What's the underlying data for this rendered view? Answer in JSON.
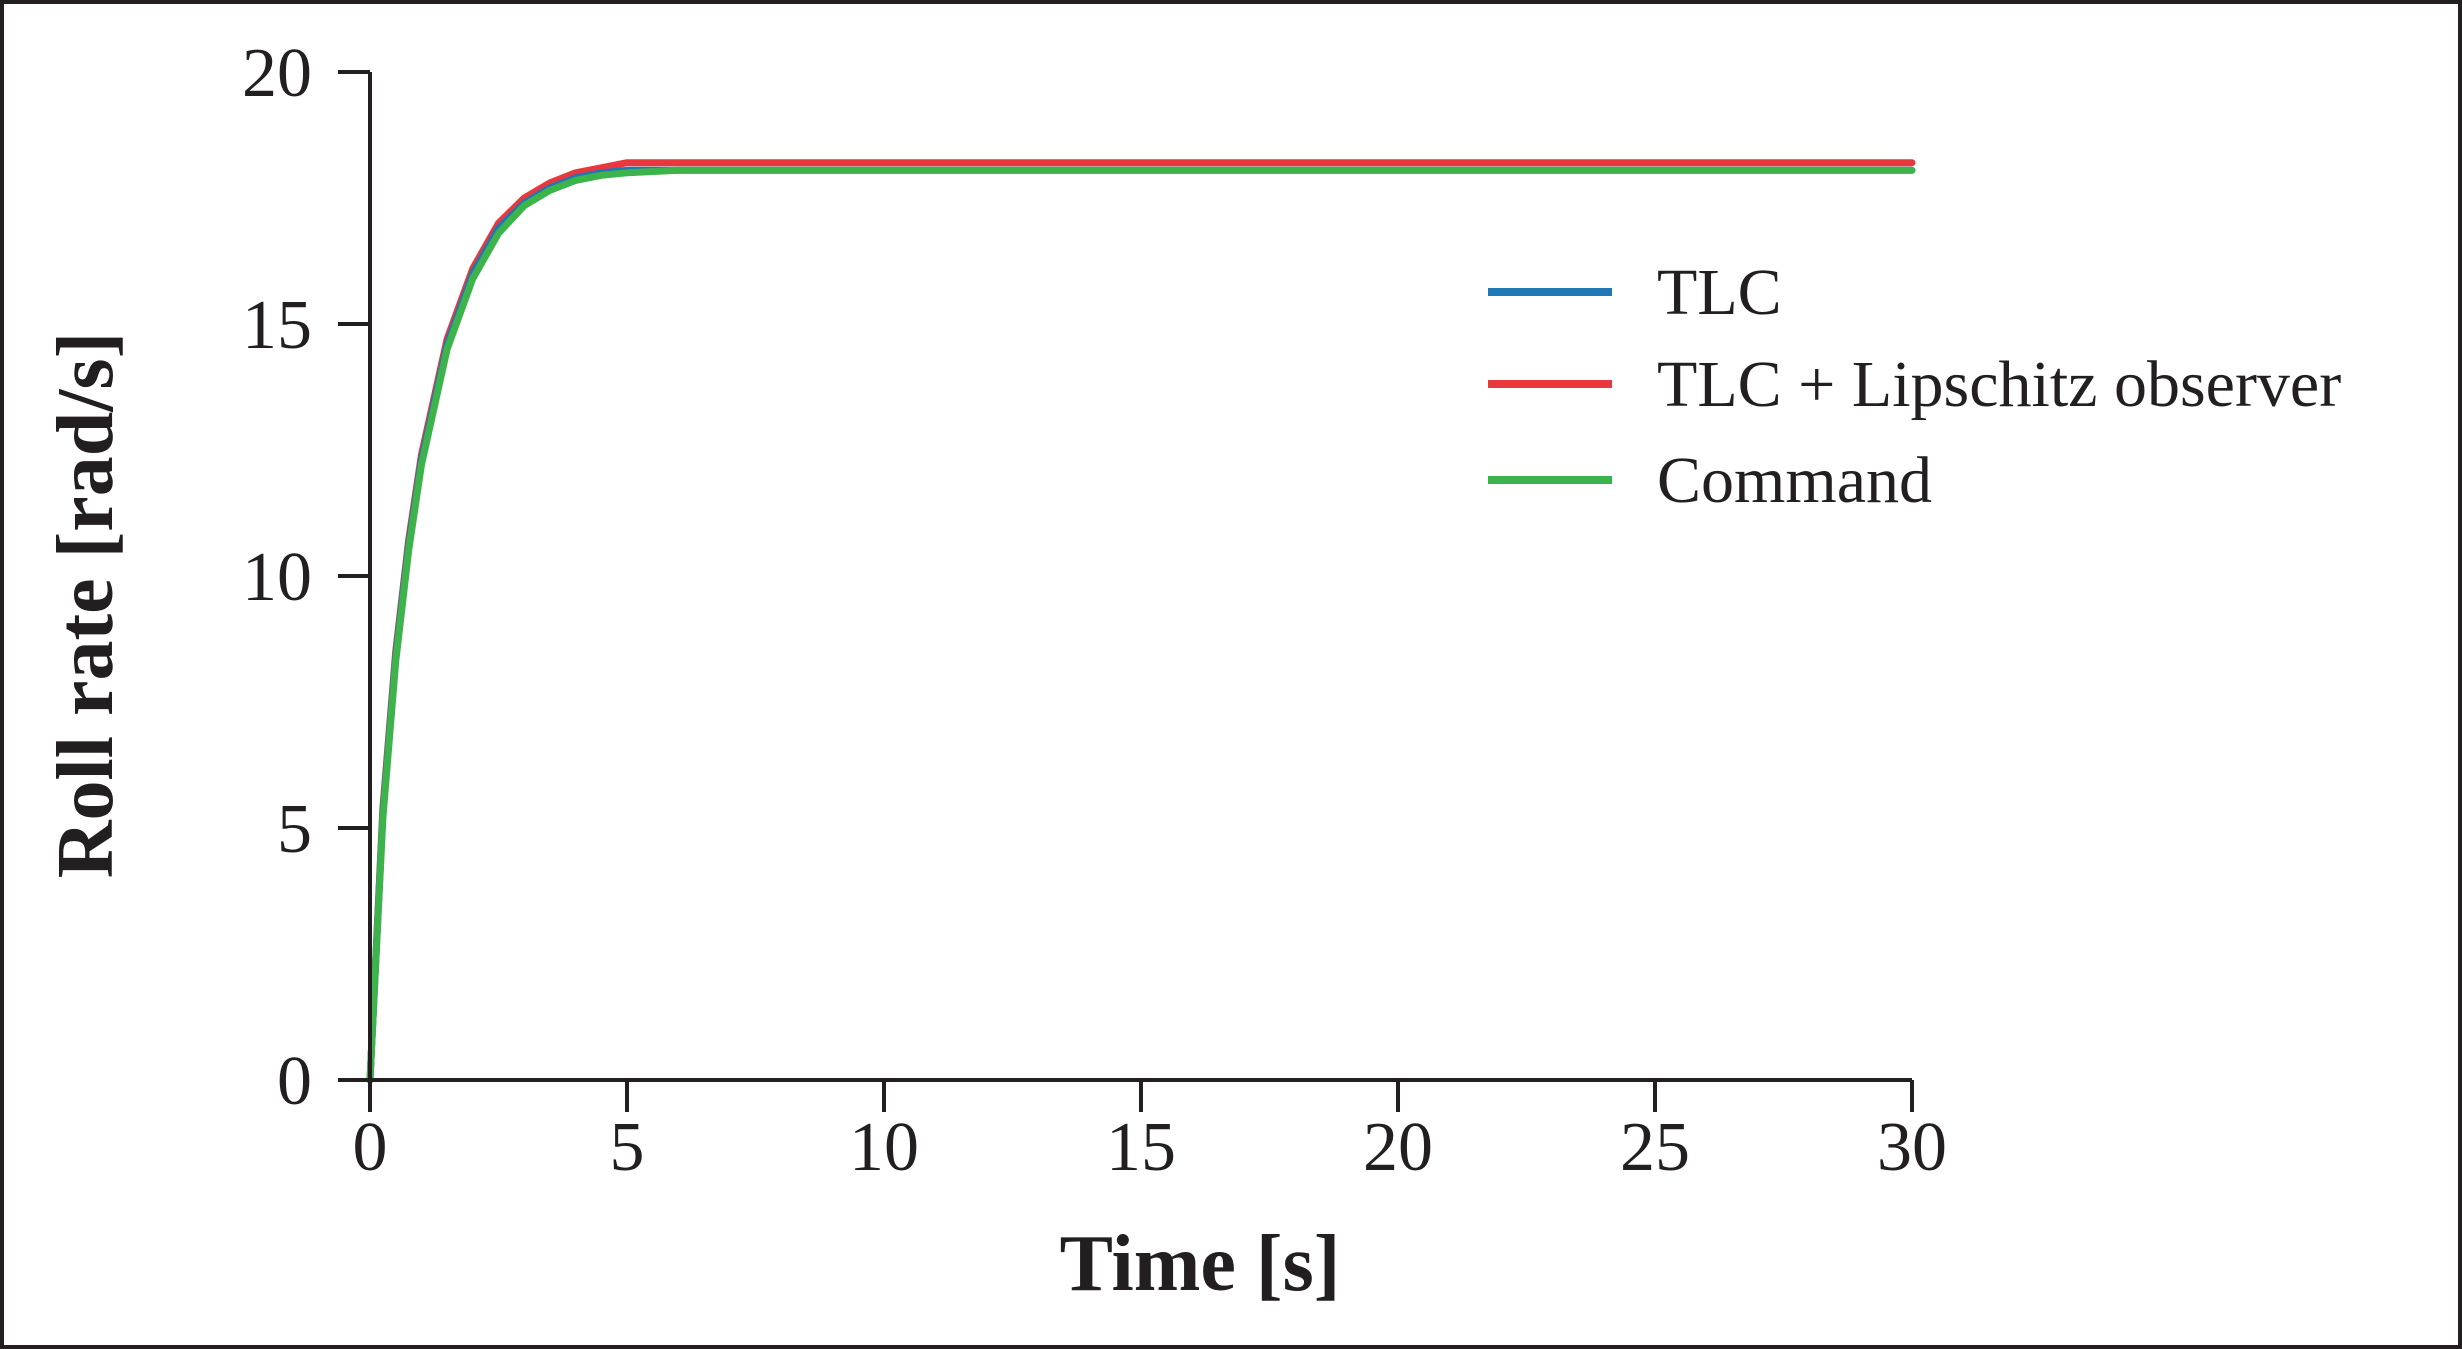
{
  "chart_data": {
    "type": "line",
    "xlabel": "Time [s]",
    "ylabel": "Roll rate [rad/s]",
    "xlim": [
      0,
      30
    ],
    "ylim": [
      0,
      20
    ],
    "xticks": [
      "0",
      "5",
      "10",
      "15",
      "20",
      "25",
      "30"
    ],
    "yticks": [
      "0",
      "5",
      "10",
      "15",
      "20"
    ],
    "grid": false,
    "legend_position": "right",
    "series": [
      {
        "name": "TLC",
        "color": "#1f77b4",
        "x": [
          0,
          0.25,
          0.5,
          0.75,
          1,
          1.5,
          2,
          2.5,
          3,
          3.5,
          4,
          4.5,
          5,
          6,
          7,
          8,
          10,
          12,
          15,
          18,
          20,
          22,
          25,
          28,
          30
        ],
        "y": [
          0,
          5.3,
          8.4,
          10.6,
          12.3,
          14.6,
          16.0,
          16.9,
          17.4,
          17.7,
          17.9,
          18.0,
          18.05,
          18.05,
          18.05,
          18.05,
          18.05,
          18.05,
          18.05,
          18.05,
          18.05,
          18.05,
          18.05,
          18.05,
          18.05
        ]
      },
      {
        "name": "TLC + Lipschitz observer",
        "color": "#e8383d",
        "x": [
          0,
          0.25,
          0.5,
          0.75,
          1,
          1.5,
          2,
          2.5,
          3,
          3.5,
          4,
          4.5,
          5,
          6,
          7,
          8,
          10,
          12,
          15,
          18,
          20,
          22,
          25,
          28,
          30
        ],
        "y": [
          0,
          5.4,
          8.5,
          10.7,
          12.4,
          14.7,
          16.1,
          17.0,
          17.5,
          17.8,
          18.0,
          18.1,
          18.2,
          18.2,
          18.2,
          18.2,
          18.2,
          18.2,
          18.2,
          18.2,
          18.2,
          18.2,
          18.2,
          18.2,
          18.2
        ]
      },
      {
        "name": "Command",
        "color": "#3cb44b",
        "x": [
          0,
          0.25,
          0.5,
          0.75,
          1,
          1.5,
          2,
          2.5,
          3,
          3.5,
          4,
          4.5,
          5,
          6,
          7,
          8,
          10,
          12,
          15,
          18,
          20,
          22,
          25,
          28,
          30
        ],
        "y": [
          0,
          5.2,
          8.3,
          10.5,
          12.2,
          14.5,
          15.9,
          16.8,
          17.35,
          17.65,
          17.85,
          17.95,
          18.0,
          18.05,
          18.05,
          18.05,
          18.05,
          18.05,
          18.05,
          18.05,
          18.05,
          18.05,
          18.05,
          18.05,
          18.05
        ]
      }
    ]
  }
}
